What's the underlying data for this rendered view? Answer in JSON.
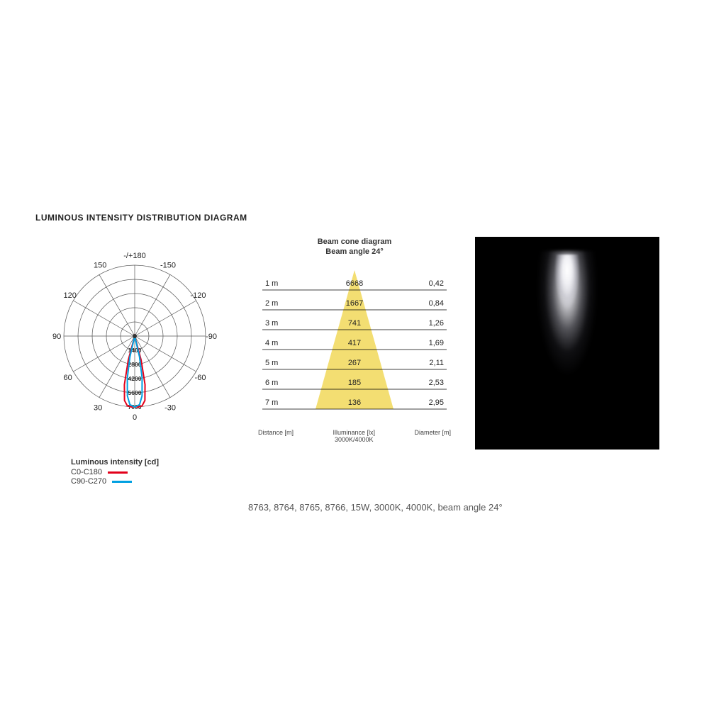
{
  "title": "LUMINOUS INTENSITY DISTRIBUTION DIAGRAM",
  "polar": {
    "top_label": "-/+180",
    "angle_labels": [
      {
        "a": -150,
        "t": "-150"
      },
      {
        "a": 150,
        "t": "150"
      },
      {
        "a": -120,
        "t": "-120"
      },
      {
        "a": 120,
        "t": "120"
      },
      {
        "a": -90,
        "t": "-90"
      },
      {
        "a": 90,
        "t": "90"
      },
      {
        "a": -60,
        "t": "-60"
      },
      {
        "a": 60,
        "t": "60"
      },
      {
        "a": -30,
        "t": "-30"
      },
      {
        "a": 30,
        "t": "30"
      }
    ],
    "bottom_label": "0",
    "ring_count": 5,
    "ring_labels": [
      "1400",
      "2800",
      "4200",
      "5600",
      "7000"
    ],
    "grid_color": "#555",
    "grid_width": 0.7,
    "background": "#ffffff",
    "series": [
      {
        "name": "C0-C180",
        "color": "#e2001a",
        "width": 2,
        "points": [
          [
            -18,
            0
          ],
          [
            -15,
            0.35
          ],
          [
            -12,
            0.7
          ],
          [
            -9,
            0.92
          ],
          [
            -6,
            0.99
          ],
          [
            -3,
            1.0
          ],
          [
            0,
            1.0
          ],
          [
            3,
            1.0
          ],
          [
            6,
            0.99
          ],
          [
            9,
            0.92
          ],
          [
            12,
            0.7
          ],
          [
            15,
            0.35
          ],
          [
            18,
            0
          ]
        ]
      },
      {
        "name": "C90-C270",
        "color": "#00a0e1",
        "width": 2,
        "points": [
          [
            -16,
            0
          ],
          [
            -13,
            0.3
          ],
          [
            -10,
            0.6
          ],
          [
            -7,
            0.85
          ],
          [
            -4,
            0.97
          ],
          [
            0,
            1.0
          ],
          [
            4,
            0.97
          ],
          [
            7,
            0.85
          ],
          [
            10,
            0.6
          ],
          [
            13,
            0.3
          ],
          [
            16,
            0
          ]
        ]
      }
    ],
    "legend_title": "Luminous intensity [cd]"
  },
  "cone": {
    "title_l1": "Beam cone diagram",
    "title_l2": "Beam angle 24°",
    "beam_color": "#f3de72",
    "line_color": "#000",
    "text_color": "#222",
    "rows": [
      {
        "dist": "1 m",
        "lux": "6668",
        "dia": "0,42"
      },
      {
        "dist": "2 m",
        "lux": "1667",
        "dia": "0,84"
      },
      {
        "dist": "3 m",
        "lux": "741",
        "dia": "1,26"
      },
      {
        "dist": "4 m",
        "lux": "417",
        "dia": "1,69"
      },
      {
        "dist": "5 m",
        "lux": "267",
        "dia": "2,11"
      },
      {
        "dist": "6 m",
        "lux": "185",
        "dia": "2,53"
      },
      {
        "dist": "7 m",
        "lux": "136",
        "dia": "2,95"
      }
    ],
    "axis_left": "Distance [m]",
    "axis_mid1": "Illuminance [lx]",
    "axis_mid2": "3000K/4000K",
    "axis_right": "Diameter [m]"
  },
  "caption": "8763, 8764, 8765, 8766, 15W, 3000K, 4000K, beam angle 24°"
}
